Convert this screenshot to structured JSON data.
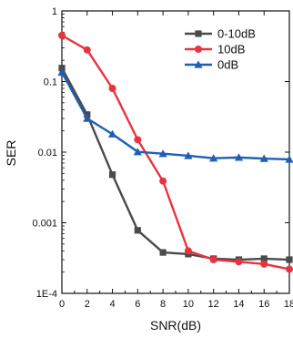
{
  "chart_data": {
    "type": "line",
    "xlabel": "SNR(dB)",
    "ylabel": "SER",
    "x": [
      0,
      2,
      4,
      6,
      8,
      10,
      12,
      14,
      16,
      18
    ],
    "xlim": [
      0,
      18
    ],
    "ylim": [
      0.0001,
      1
    ],
    "yscale": "log",
    "x_ticks": [
      "0",
      "2",
      "4",
      "6",
      "8",
      "10",
      "12",
      "14",
      "16",
      "18"
    ],
    "y_ticks": [
      {
        "value": 1,
        "label": "1"
      },
      {
        "value": 0.1,
        "label": "0.1"
      },
      {
        "value": 0.01,
        "label": "0.01"
      },
      {
        "value": 0.001,
        "label": "0.001"
      },
      {
        "value": 0.0001,
        "label": "1E-4"
      }
    ],
    "grid": false,
    "legend_position": "top-right",
    "series": [
      {
        "name": "0-10dB",
        "color": "#4a4a4a",
        "marker": "square",
        "values": [
          0.155,
          0.034,
          0.0048,
          0.00078,
          0.00038,
          0.00036,
          0.00031,
          0.0003,
          0.00031,
          0.0003
        ]
      },
      {
        "name": "10dB",
        "color": "#e8343e",
        "marker": "circle",
        "values": [
          0.45,
          0.28,
          0.08,
          0.015,
          0.0039,
          0.0004,
          0.0003,
          0.00028,
          0.00026,
          0.00022
        ]
      },
      {
        "name": "0dB",
        "color": "#1f5fb4",
        "marker": "triangle",
        "values": [
          0.135,
          0.03,
          0.018,
          0.0101,
          0.0095,
          0.0089,
          0.0082,
          0.0084,
          0.0081,
          0.0079
        ]
      }
    ]
  }
}
